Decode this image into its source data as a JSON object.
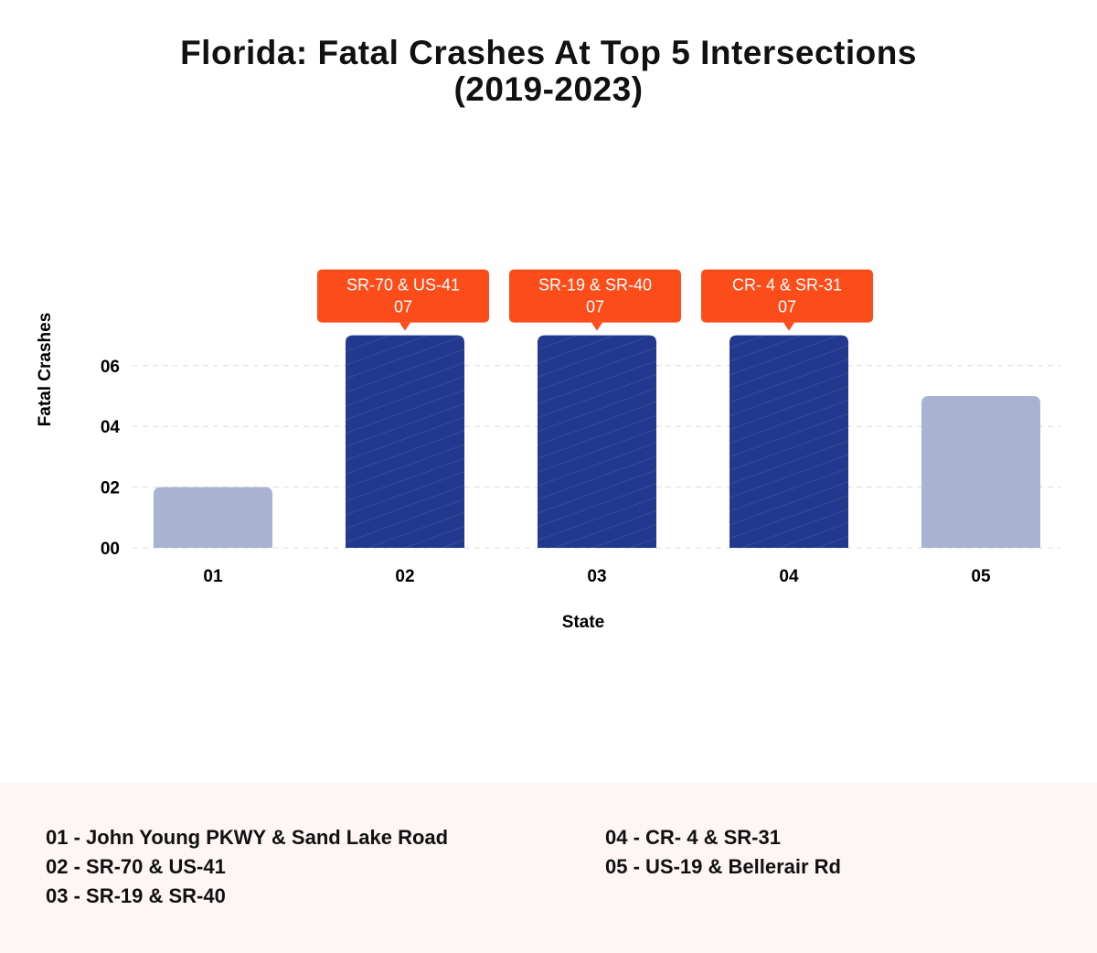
{
  "chart_data": {
    "type": "bar",
    "title": "Florida: Fatal Crashes At Top 5 Intersections",
    "subtitle": "(2019-2023)",
    "xlabel": "State",
    "ylabel": "Fatal Crashes",
    "categories": [
      "01",
      "02",
      "03",
      "04",
      "05"
    ],
    "values": [
      2,
      7,
      7,
      7,
      5
    ],
    "ylim": [
      0,
      7
    ],
    "yticks": [
      "00",
      "02",
      "04",
      "06"
    ],
    "ytick_values": [
      0,
      2,
      4,
      6
    ],
    "grid": true,
    "highlighted": [
      false,
      true,
      true,
      true,
      false
    ],
    "annotations": [
      {
        "index": 1,
        "label": "SR-70 & US-41",
        "value": "07"
      },
      {
        "index": 2,
        "label": "SR-19 & SR-40",
        "value": "07"
      },
      {
        "index": 3,
        "label": "CR- 4 & SR-31",
        "value": "07"
      }
    ],
    "colors": {
      "highlight": "#22398f",
      "normal": "#a8b2d1",
      "annotation": "#fc4c1a",
      "legend_bg": "#fdf6f5"
    }
  },
  "legend": {
    "items": [
      "01 - John Young PKWY & Sand Lake Road",
      "02 - SR-70 & US-41",
      "03 - SR-19 & SR-40",
      "04 - CR- 4 & SR-31",
      "05 - US-19 & Bellerair Rd"
    ]
  }
}
